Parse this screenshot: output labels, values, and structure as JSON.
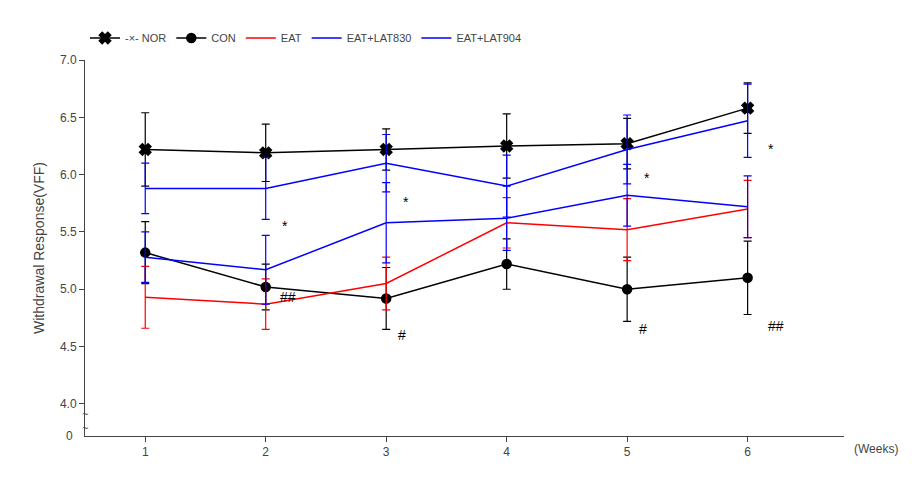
{
  "chart_data": {
    "type": "line",
    "x": [
      1,
      2,
      3,
      4,
      5,
      6
    ],
    "xlabel": "(Weeks)",
    "ylabel": "Withdrawal Response(VFF)",
    "xlim": [
      0.5,
      6.8
    ],
    "xticks": [
      1,
      2,
      3,
      4,
      5,
      6
    ],
    "ylim": [
      3.72,
      7.0
    ],
    "yticks": [
      {
        "value": 4.0,
        "label": "4.0"
      },
      4.5,
      {
        "value": 5.0,
        "label": "5.0"
      },
      5.5,
      {
        "value": 6.0,
        "label": "6.0"
      },
      6.5,
      {
        "value": 7.0,
        "label": "7.0"
      }
    ],
    "grid": false,
    "legend": "upper left",
    "background_color": "#ffffff",
    "y_break_label": "0",
    "y_break_mark": "~",
    "series": [
      {
        "name": "-×- NOR",
        "color": "black",
        "marker": "x",
        "line_style": "solid",
        "values": [
          6.22,
          6.19,
          6.22,
          6.25,
          6.27,
          6.58
        ],
        "yerr": [
          0.32,
          0.25,
          0.18,
          0.28,
          0.22,
          0.22
        ]
      },
      {
        "name": "CON",
        "color": "black",
        "marker": "circle",
        "line_style": "solid",
        "values": [
          5.32,
          5.02,
          4.92,
          5.22,
          5.0,
          5.1
        ],
        "yerr": [
          0.27,
          0.2,
          0.27,
          0.22,
          0.28,
          0.32
        ]
      },
      {
        "name": "EAT",
        "color": "red",
        "marker": "triangle-up-open",
        "line_style": "solid",
        "values": [
          4.93,
          4.87,
          5.05,
          5.58,
          5.52,
          5.7
        ],
        "yerr": [
          0.27,
          0.22,
          0.23,
          0.22,
          0.27,
          0.25
        ]
      },
      {
        "name": "EAT+LAT830",
        "color": "blue",
        "marker": "diamond-open",
        "line_style": "solid",
        "values": [
          5.28,
          5.17,
          5.58,
          5.62,
          5.82,
          5.72
        ],
        "yerr": [
          0.22,
          0.3,
          0.35,
          0.28,
          0.27,
          0.27
        ]
      },
      {
        "name": "EAT+LAT904",
        "color": "blue",
        "marker": "square-open",
        "line_style": "solid",
        "values": [
          5.88,
          5.88,
          6.1,
          5.9,
          6.22,
          6.47
        ],
        "yerr": [
          0.22,
          0.27,
          0.25,
          0.27,
          0.3,
          0.32
        ]
      }
    ],
    "annotations": [
      {
        "text": "*",
        "x": 2.12,
        "y": 5.55
      },
      {
        "text": "##",
        "x": 2.1,
        "y": 4.93
      },
      {
        "text": "*",
        "x": 3.12,
        "y": 5.76
      },
      {
        "text": "#",
        "x": 3.08,
        "y": 4.6
      },
      {
        "text": "*",
        "x": 5.12,
        "y": 5.97
      },
      {
        "text": "#",
        "x": 5.08,
        "y": 4.65
      },
      {
        "text": "*",
        "x": 6.15,
        "y": 6.22
      },
      {
        "text": "##",
        "x": 6.15,
        "y": 4.68
      }
    ]
  }
}
